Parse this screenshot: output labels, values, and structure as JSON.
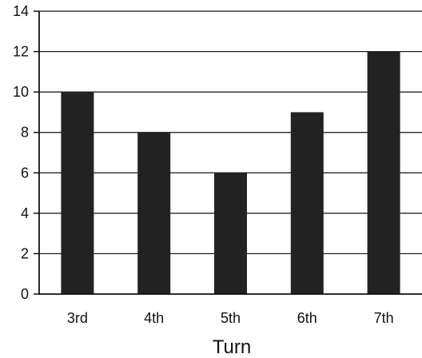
{
  "chart_data": {
    "type": "bar",
    "categories": [
      "3rd",
      "4th",
      "5th",
      "6th",
      "7th"
    ],
    "values": [
      10,
      8,
      6,
      9,
      12
    ],
    "title": "",
    "xlabel": "Turn",
    "ylabel": "",
    "ylim": [
      0,
      14
    ],
    "yticks": [
      0,
      2,
      4,
      6,
      8,
      10,
      12,
      14
    ],
    "grid": "horizontal",
    "legend": "none",
    "colors": {
      "bar": "#222222",
      "axis": "#111111",
      "grid": "#111111",
      "background": "#ffffff"
    }
  }
}
